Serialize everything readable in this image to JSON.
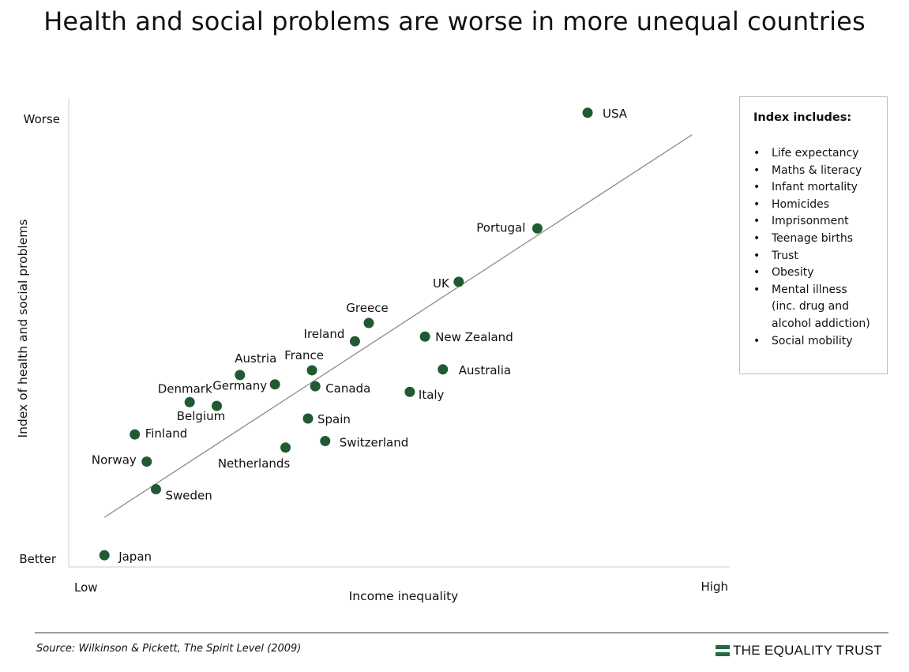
{
  "title": "Health and social problems are worse in more unequal countries",
  "chart_data": {
    "type": "scatter",
    "title": "Health and social problems are worse in more unequal countries",
    "xlabel": "Income inequality",
    "ylabel": "Index of health and social problems",
    "x_tick_labels": [
      "Low",
      "High"
    ],
    "y_tick_labels": [
      "Worse",
      "Better"
    ],
    "xlim": [
      0,
      100
    ],
    "ylim": [
      0,
      100
    ],
    "points": [
      {
        "label": "USA",
        "x": 78.5,
        "y": 97.0
      },
      {
        "label": "Portugal",
        "x": 70.9,
        "y": 72.3
      },
      {
        "label": "UK",
        "x": 59.0,
        "y": 60.9
      },
      {
        "label": "Greece",
        "x": 45.4,
        "y": 52.1
      },
      {
        "label": "Ireland",
        "x": 43.3,
        "y": 48.2
      },
      {
        "label": "New Zealand",
        "x": 53.9,
        "y": 49.2
      },
      {
        "label": "Australia",
        "x": 56.6,
        "y": 42.2
      },
      {
        "label": "Austria",
        "x": 25.9,
        "y": 41.0
      },
      {
        "label": "France",
        "x": 36.8,
        "y": 42.0
      },
      {
        "label": "Germany",
        "x": 31.2,
        "y": 39.0
      },
      {
        "label": "Canada",
        "x": 37.3,
        "y": 38.6
      },
      {
        "label": "Italy",
        "x": 51.6,
        "y": 37.4
      },
      {
        "label": "Denmark",
        "x": 18.3,
        "y": 35.2
      },
      {
        "label": "Belgium",
        "x": 22.4,
        "y": 34.4
      },
      {
        "label": "Spain",
        "x": 36.2,
        "y": 31.7
      },
      {
        "label": "Finland",
        "x": 10.0,
        "y": 28.3
      },
      {
        "label": "Switzerland",
        "x": 38.8,
        "y": 26.9
      },
      {
        "label": "Netherlands",
        "x": 32.8,
        "y": 25.5
      },
      {
        "label": "Norway",
        "x": 11.8,
        "y": 22.5
      },
      {
        "label": "Sweden",
        "x": 13.2,
        "y": 16.6
      },
      {
        "label": "Japan",
        "x": 5.4,
        "y": 2.5
      }
    ],
    "trendline": {
      "x": [
        5.4,
        94.3
      ],
      "y": [
        10.6,
        92.3
      ]
    },
    "grid": false
  },
  "legend": {
    "title": "Index includes:",
    "items": [
      "Life expectancy",
      "Maths & literacy",
      "Infant mortality",
      "Homicides",
      "Imprisonment",
      "Teenage births",
      "Trust",
      "Obesity",
      "Mental illness",
      "(inc. drug and",
      "alcohol addiction)",
      "Social mobility"
    ]
  },
  "footer": {
    "source": "Source: Wilkinson & Pickett, The Spirit Level (2009)",
    "logo_text": "THE EQUALITY TRUST"
  },
  "colors": {
    "point": "#1f5a32",
    "trendline": "#8c8c8c",
    "axis": "#cccccc",
    "logo": "#1f6b3d"
  }
}
